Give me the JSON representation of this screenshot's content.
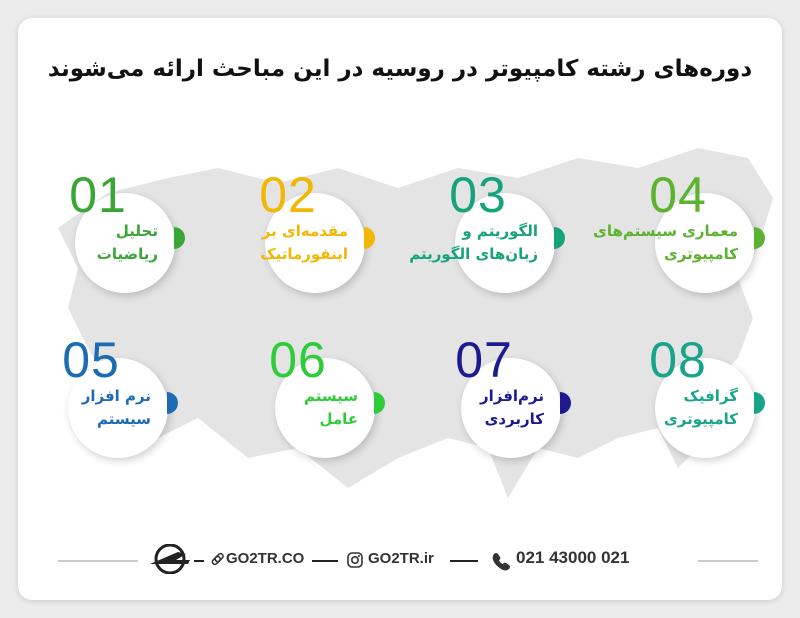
{
  "header": {
    "title": "دوره‌های رشته کامپیوتر در روسیه در این مباحث ارائه می‌شوند"
  },
  "items": [
    {
      "number": "01",
      "color": "#3aa635",
      "lines": [
        "تحلیل",
        "ریاضیات"
      ]
    },
    {
      "number": "02",
      "color": "#f2b705",
      "lines": [
        "مقدمه‌ای بر",
        "اینفورماتیک"
      ]
    },
    {
      "number": "03",
      "color": "#17a37a",
      "lines": [
        "الگوریتم و",
        "زبان‌های الگوریتم"
      ]
    },
    {
      "number": "04",
      "color": "#5db22f",
      "lines": [
        "معماری سیستم‌های",
        "کامپیوتری"
      ]
    },
    {
      "number": "05",
      "color": "#1d6cb3",
      "lines": [
        "نرم افزار",
        "سیستم"
      ]
    },
    {
      "number": "06",
      "color": "#2fcc3a",
      "lines": [
        "سیستم",
        "عامل"
      ]
    },
    {
      "number": "07",
      "color": "#1c1a8e",
      "lines": [
        "نرم‌افزار",
        "کاربردی"
      ]
    },
    {
      "number": "08",
      "color": "#17a58a",
      "lines": [
        "گرافیک",
        "کامپیوتری"
      ]
    }
  ],
  "footer": {
    "website": "GO2TR.CO",
    "instagram": "GO2TR.ir",
    "phone": "021 43000 021"
  }
}
